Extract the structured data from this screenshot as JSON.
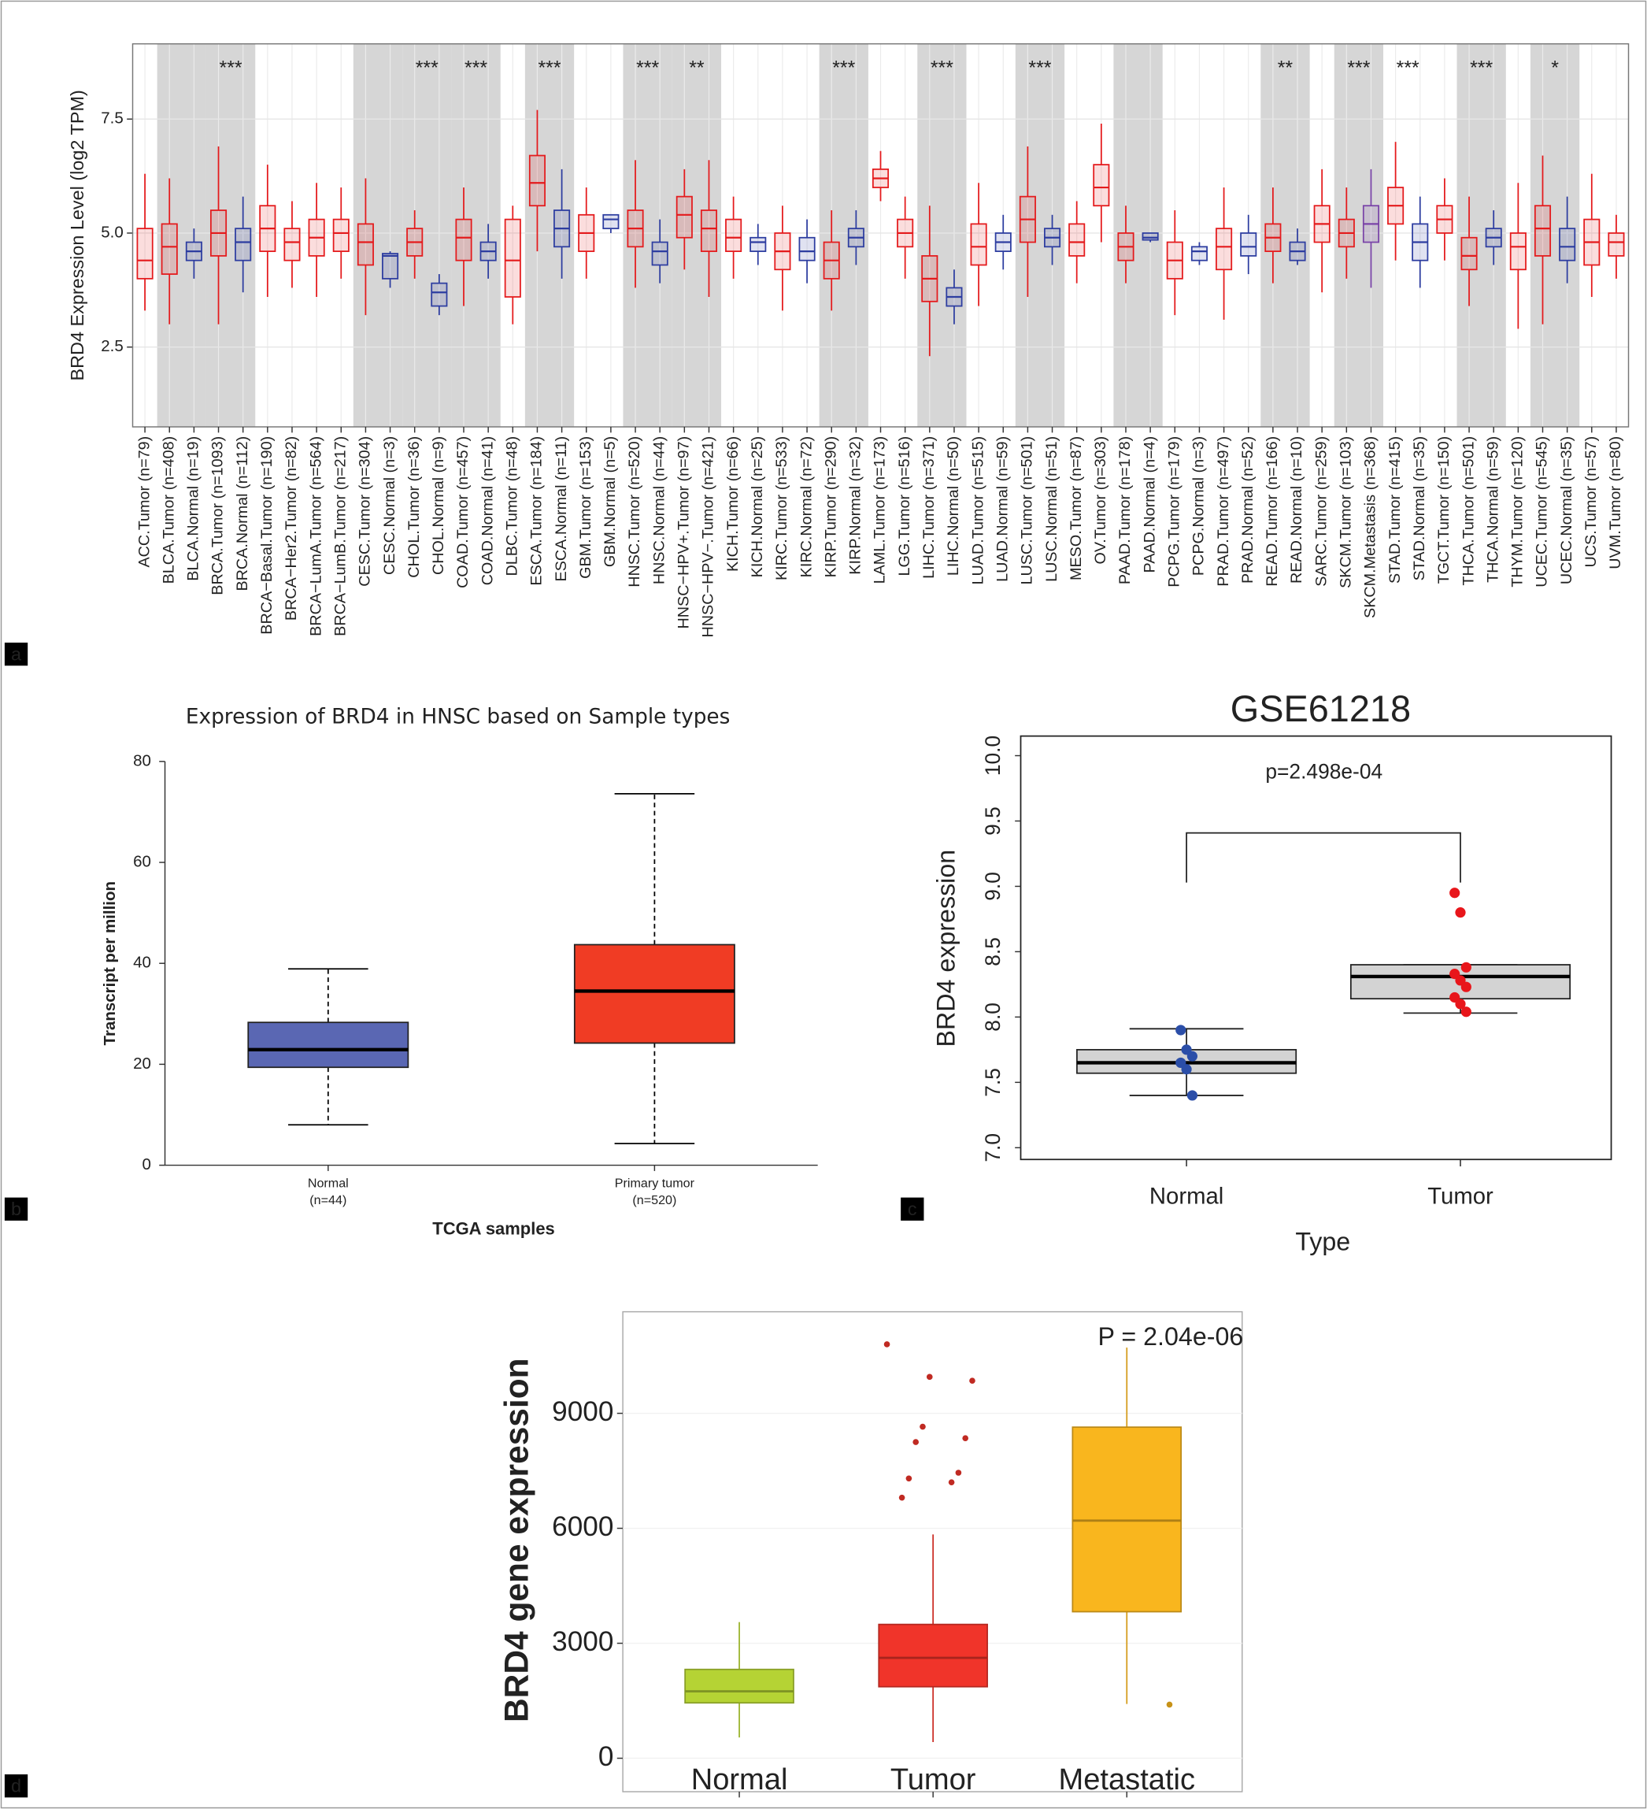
{
  "chart_data": [
    {
      "type": "box",
      "panel": "a",
      "ylabel": "BRD4 Expression Level (log2 TPM)",
      "categories": [
        "ACC.Tumor (n=79)",
        "BLCA.Tumor (n=408)",
        "BLCA.Normal (n=19)",
        "BRCA.Tumor (n=1093)",
        "BRCA.Normal (n=112)",
        "BRCA−Basal.Tumor (n=190)",
        "BRCA−Her2.Tumor (n=82)",
        "BRCA−LumA.Tumor (n=564)",
        "BRCA−LumB.Tumor (n=217)",
        "CESC.Tumor (n=304)",
        "CESC.Normal (n=3)",
        "CHOL.Tumor (n=36)",
        "CHOL.Normal (n=9)",
        "COAD.Tumor (n=457)",
        "COAD.Normal (n=41)",
        "DLBC.Tumor (n=48)",
        "ESCA.Tumor (n=184)",
        "ESCA.Normal (n=11)",
        "GBM.Tumor (n=153)",
        "GBM.Normal (n=5)",
        "HNSC.Tumor (n=520)",
        "HNSC.Normal (n=44)",
        "HNSC−HPV+.Tumor (n=97)",
        "HNSC−HPV−.Tumor (n=421)",
        "KICH.Tumor (n=66)",
        "KICH.Normal (n=25)",
        "KIRC.Tumor (n=533)",
        "KIRC.Normal (n=72)",
        "KIRP.Tumor (n=290)",
        "KIRP.Normal (n=32)",
        "LAML.Tumor (n=173)",
        "LGG.Tumor (n=516)",
        "LIHC.Tumor (n=371)",
        "LIHC.Normal (n=50)",
        "LUAD.Tumor (n=515)",
        "LUAD.Normal (n=59)",
        "LUSC.Tumor (n=501)",
        "LUSC.Normal (n=51)",
        "MESO.Tumor (n=87)",
        "OV.Tumor (n=303)",
        "PAAD.Tumor (n=178)",
        "PAAD.Normal (n=4)",
        "PCPG.Tumor (n=179)",
        "PCPG.Normal (n=3)",
        "PRAD.Tumor (n=497)",
        "PRAD.Normal (n=52)",
        "READ.Tumor (n=166)",
        "READ.Normal (n=10)",
        "SARC.Tumor (n=259)",
        "SKCM.Tumor (n=103)",
        "SKCM.Metastasis (n=368)",
        "STAD.Tumor (n=415)",
        "STAD.Normal (n=35)",
        "TGCT.Tumor (n=150)",
        "THCA.Tumor (n=501)",
        "THCA.Normal (n=59)",
        "THYM.Tumor (n=120)",
        "UCEC.Tumor (n=545)",
        "UCEC.Normal (n=35)",
        "UCS.Tumor (n=57)",
        "UVM.Tumor (n=80)"
      ],
      "min": [
        3.3,
        3.0,
        4.0,
        3.0,
        3.7,
        3.6,
        3.8,
        3.6,
        4.0,
        3.2,
        3.8,
        4.0,
        3.2,
        3.4,
        4.0,
        3.0,
        4.6,
        4.0,
        4.0,
        5.0,
        3.8,
        3.9,
        4.2,
        3.6,
        4.0,
        4.3,
        3.3,
        3.9,
        3.3,
        4.3,
        5.7,
        4.0,
        2.3,
        3.0,
        3.4,
        4.2,
        3.6,
        4.3,
        3.9,
        4.8,
        3.9,
        4.8,
        3.2,
        4.3,
        3.1,
        4.1,
        3.9,
        4.3,
        3.7,
        4.0,
        3.8,
        4.4,
        3.8,
        4.4,
        3.4,
        4.3,
        2.9,
        3.0,
        3.9,
        3.6,
        4.0
      ],
      "q1": [
        4.0,
        4.1,
        4.4,
        4.5,
        4.4,
        4.6,
        4.4,
        4.5,
        4.6,
        4.3,
        4.0,
        4.5,
        3.4,
        4.4,
        4.4,
        3.6,
        5.6,
        4.7,
        4.6,
        5.1,
        4.7,
        4.3,
        4.9,
        4.6,
        4.6,
        4.6,
        4.2,
        4.4,
        4.0,
        4.7,
        6.0,
        4.7,
        3.5,
        3.4,
        4.3,
        4.6,
        4.8,
        4.7,
        4.5,
        5.6,
        4.4,
        4.85,
        4.0,
        4.4,
        4.2,
        4.5,
        4.6,
        4.4,
        4.8,
        4.7,
        4.8,
        5.2,
        4.4,
        5.0,
        4.2,
        4.7,
        4.2,
        4.5,
        4.4,
        4.3,
        4.5
      ],
      "median": [
        4.4,
        4.7,
        4.6,
        5.0,
        4.8,
        5.1,
        4.8,
        4.9,
        5.0,
        4.8,
        4.5,
        4.8,
        3.7,
        4.9,
        4.6,
        4.4,
        6.1,
        5.1,
        5.0,
        5.3,
        5.1,
        4.6,
        5.4,
        5.1,
        4.9,
        4.8,
        4.6,
        4.6,
        4.4,
        4.9,
        6.2,
        5.0,
        4.0,
        3.6,
        4.7,
        4.8,
        5.3,
        4.9,
        4.8,
        6.0,
        4.7,
        4.9,
        4.4,
        4.6,
        4.7,
        4.7,
        4.9,
        4.6,
        5.2,
        5.0,
        5.2,
        5.6,
        4.8,
        5.3,
        4.5,
        4.9,
        4.7,
        5.1,
        4.7,
        4.8,
        4.8
      ],
      "q3": [
        5.1,
        5.2,
        4.8,
        5.5,
        5.1,
        5.6,
        5.1,
        5.3,
        5.3,
        5.2,
        4.55,
        5.1,
        3.9,
        5.3,
        4.8,
        5.3,
        6.7,
        5.5,
        5.4,
        5.4,
        5.5,
        4.8,
        5.8,
        5.5,
        5.3,
        4.9,
        5.0,
        4.9,
        4.8,
        5.1,
        6.4,
        5.3,
        4.5,
        3.8,
        5.2,
        5.0,
        5.8,
        5.1,
        5.2,
        6.5,
        5.0,
        5.0,
        4.8,
        4.7,
        5.1,
        5.0,
        5.2,
        4.8,
        5.6,
        5.3,
        5.6,
        6.0,
        5.2,
        5.6,
        4.9,
        5.1,
        5.0,
        5.6,
        5.1,
        5.3,
        5.0
      ],
      "max": [
        6.3,
        6.2,
        5.1,
        6.9,
        5.8,
        6.5,
        5.7,
        6.1,
        6.0,
        6.2,
        4.6,
        5.5,
        4.1,
        6.0,
        5.2,
        5.6,
        7.7,
        6.4,
        6.0,
        5.4,
        6.6,
        5.3,
        6.4,
        6.6,
        5.8,
        5.2,
        5.6,
        5.3,
        5.5,
        5.5,
        6.8,
        5.8,
        5.6,
        4.2,
        6.1,
        5.4,
        6.9,
        5.4,
        5.7,
        7.4,
        5.6,
        5.0,
        5.5,
        4.8,
        6.0,
        5.4,
        6.0,
        5.1,
        6.4,
        6.0,
        6.4,
        7.0,
        5.8,
        6.2,
        5.8,
        5.5,
        6.1,
        6.7,
        5.8,
        6.3,
        5.4
      ],
      "colors": [
        "#e41a1c",
        "#e41a1c",
        "#2d3da0",
        "#e41a1c",
        "#2d3da0",
        "#e41a1c",
        "#e41a1c",
        "#e41a1c",
        "#e41a1c",
        "#e41a1c",
        "#2d3da0",
        "#e41a1c",
        "#2d3da0",
        "#e41a1c",
        "#2d3da0",
        "#e41a1c",
        "#e41a1c",
        "#2d3da0",
        "#e41a1c",
        "#2d3da0",
        "#e41a1c",
        "#2d3da0",
        "#e41a1c",
        "#e41a1c",
        "#e41a1c",
        "#2d3da0",
        "#e41a1c",
        "#2d3da0",
        "#e41a1c",
        "#2d3da0",
        "#e41a1c",
        "#e41a1c",
        "#e41a1c",
        "#2d3da0",
        "#e41a1c",
        "#2d3da0",
        "#e41a1c",
        "#2d3da0",
        "#e41a1c",
        "#e41a1c",
        "#e41a1c",
        "#2d3da0",
        "#e41a1c",
        "#2d3da0",
        "#e41a1c",
        "#2d3da0",
        "#e41a1c",
        "#2d3da0",
        "#e41a1c",
        "#e41a1c",
        "#7a44a8",
        "#e41a1c",
        "#2d3da0",
        "#e41a1c",
        "#e41a1c",
        "#2d3da0",
        "#e41a1c",
        "#e41a1c",
        "#2d3da0",
        "#e41a1c",
        "#e41a1c"
      ],
      "stars": [
        null,
        null,
        null,
        "***",
        null,
        null,
        null,
        null,
        null,
        null,
        null,
        "***",
        null,
        "***",
        null,
        null,
        "***",
        null,
        null,
        null,
        "***",
        null,
        "**",
        null,
        null,
        null,
        null,
        null,
        "***",
        null,
        null,
        null,
        "***",
        null,
        null,
        null,
        "***",
        null,
        null,
        null,
        null,
        null,
        null,
        null,
        null,
        null,
        "**",
        null,
        null,
        "***",
        null,
        "***",
        null,
        null,
        "***",
        null,
        null,
        "*",
        null,
        null,
        null
      ],
      "ylim": [
        0.75,
        9.15
      ],
      "yticks": [
        2.5,
        {
          "value": 5,
          "label": "5.0"
        },
        7.5
      ],
      "grid": true
    },
    {
      "type": "box",
      "panel": "b",
      "title": "Expression of BRD4 in HNSC based on Sample types",
      "ylabel": "Transcript per million",
      "xlabel": "TCGA samples",
      "categories": [
        "Normal",
        "Primary tumor"
      ],
      "n_labels": [
        "(n=44)",
        "(n=520)"
      ],
      "min": [
        8.0,
        4.3
      ],
      "q1": [
        19.4,
        24.2
      ],
      "median": [
        22.9,
        34.5
      ],
      "q3": [
        28.3,
        43.7
      ],
      "max": [
        38.9,
        73.6
      ],
      "colors": [
        "#5a67b3",
        "#f03c24"
      ],
      "ylim": [
        0,
        80
      ],
      "yticks": [
        0,
        20,
        40,
        60,
        80
      ]
    },
    {
      "type": "box",
      "panel": "c",
      "title": "GSE61218",
      "annotation": "p=2.498e-04",
      "ylabel": "BRD4 expression",
      "xlabel": "Type",
      "categories": [
        "Normal",
        "Tumor"
      ],
      "min": [
        7.4,
        8.03
      ],
      "q1": [
        7.57,
        8.14
      ],
      "median": [
        7.65,
        8.31
      ],
      "q3": [
        7.75,
        8.4
      ],
      "max": [
        7.91,
        8.4
      ],
      "points": [
        [
          7.9,
          7.75,
          7.7,
          7.65,
          7.6,
          7.4
        ],
        [
          8.95,
          8.8,
          8.38,
          8.33,
          8.28,
          8.23,
          8.15,
          8.1,
          8.04
        ]
      ],
      "box_color": "#d3d3d3",
      "colors": [
        "#2b4ea8",
        "#e8161b"
      ],
      "ylim": [
        6.91,
        10.15
      ],
      "yticks": [
        {
          "value": 7,
          "label": "7.0"
        },
        7.5,
        {
          "value": 8,
          "label": "8.0"
        },
        8.5,
        {
          "value": 9,
          "label": "9.0"
        },
        9.5,
        {
          "value": 10,
          "label": "10.0"
        }
      ]
    },
    {
      "type": "box",
      "panel": "d",
      "ylabel": "BRD4 gene expression",
      "annotation": "P = 2.04e-06",
      "categories": [
        "Normal",
        "Tumor",
        "Metastatic"
      ],
      "min": [
        542,
        421,
        1415
      ],
      "q1": [
        1445,
        1866,
        3823
      ],
      "median": [
        1746,
        2619,
        6201
      ],
      "q3": [
        2318,
        3492,
        8639
      ],
      "max": [
        3552,
        5840,
        10716
      ],
      "outliers": [
        [],
        [
          10800,
          9950,
          9850,
          8650,
          8350,
          8250,
          7450,
          7300,
          7200,
          6800
        ],
        [
          1400
        ]
      ],
      "colors": [
        "#b5d334",
        "#f0342a",
        "#f9b61e"
      ],
      "ylim": [
        -873,
        11650
      ],
      "yticks": [
        0,
        3000,
        6000,
        9000
      ]
    }
  ]
}
